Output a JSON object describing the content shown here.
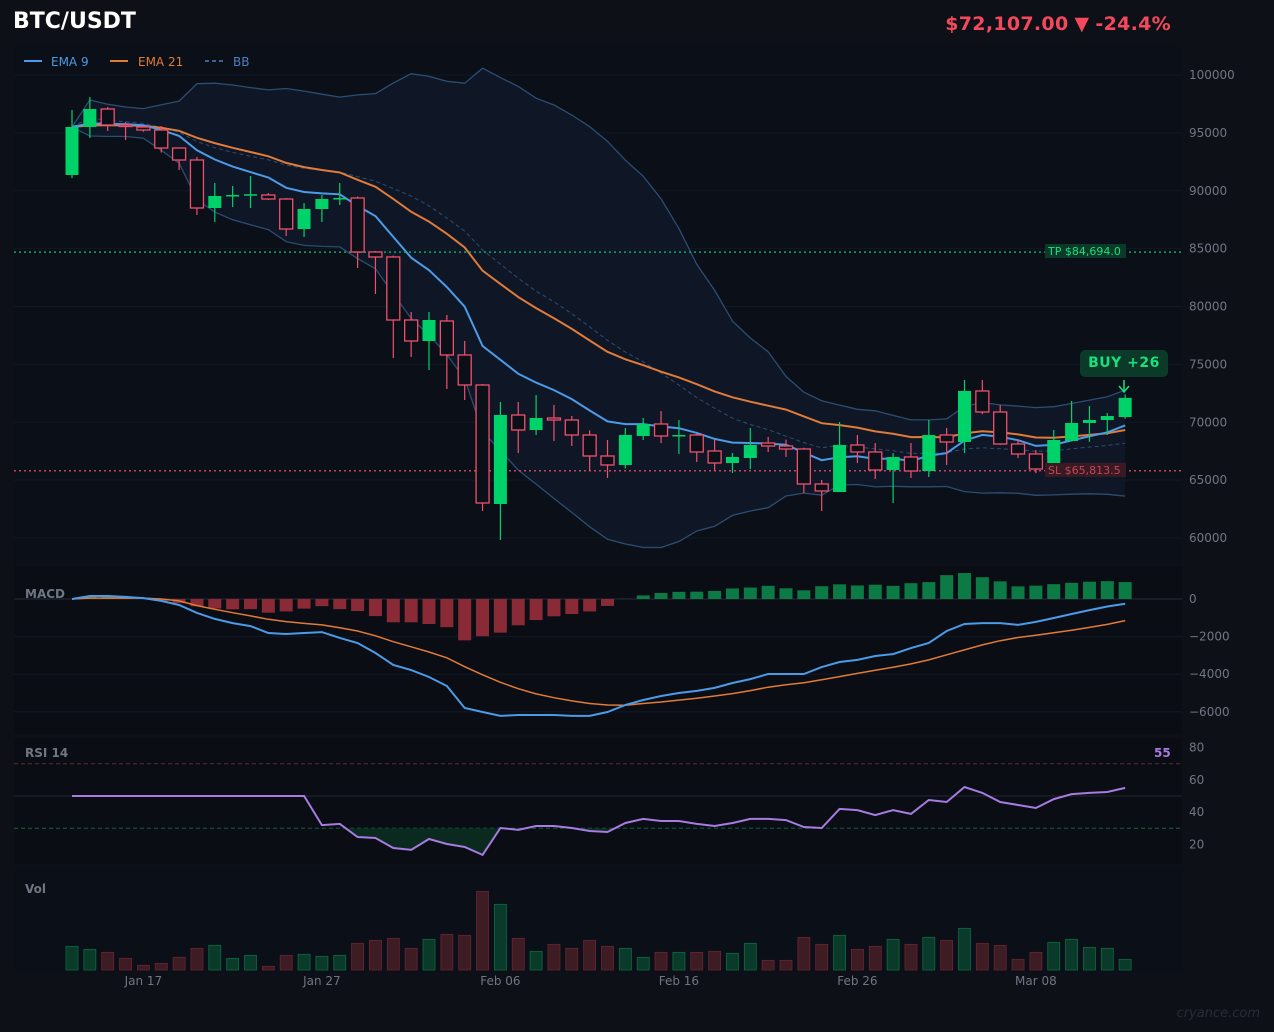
{
  "header": {
    "symbol": "BTC/USDT",
    "price": "$72,107.00",
    "change_arrow": "▼",
    "change": "-24.4%"
  },
  "legend": [
    {
      "label": "EMA 9",
      "color": "#4b9be8",
      "style": "solid"
    },
    {
      "label": "EMA 21",
      "color": "#e07b39",
      "style": "solid"
    },
    {
      "label": "BB",
      "color": "#4b7fbf",
      "style": "dashed"
    }
  ],
  "markers": {
    "tp_label": "TP $84,694.0",
    "tp_value": 84694.0,
    "sl_label": "SL $65,813.5",
    "sl_value": 65813.5,
    "signal_label": "BUY  +26"
  },
  "panels": {
    "macd_title": "MACD",
    "rsi_title": "RSI 14",
    "rsi_value": "55",
    "vol_title": "Vol"
  },
  "watermark": "cryance.com",
  "colors": {
    "up": "#00d26a",
    "down": "#f0506e",
    "ema9": "#4b9be8",
    "ema21": "#e07b39",
    "bb": "#2c4d72",
    "rsi": "#a77be0",
    "tp": "#0fa968",
    "sl": "#c0465a"
  },
  "chart_data": [
    {
      "type": "candlestick",
      "title": "BTC/USDT",
      "ylim": [
        57500,
        102000
      ],
      "yticks": [
        "100000",
        "95000",
        "90000",
        "85000",
        "80000",
        "75000",
        "70000",
        "65000",
        "60000"
      ],
      "xticks": [
        "Jan 17",
        "Jan 27",
        "Feb 06",
        "Feb 16",
        "Feb 26",
        "Mar 08"
      ],
      "grid": true,
      "legend": "top-left",
      "x": [
        "Jan 13",
        "Jan 14",
        "Jan 15",
        "Jan 16",
        "Jan 17",
        "Jan 18",
        "Jan 19",
        "Jan 20",
        "Jan 21",
        "Jan 22",
        "Jan 23",
        "Jan 24",
        "Jan 25",
        "Jan 26",
        "Jan 27",
        "Jan 28",
        "Jan 29",
        "Jan 30",
        "Jan 31",
        "Feb 01",
        "Feb 02",
        "Feb 03",
        "Feb 04",
        "Feb 05",
        "Feb 06",
        "Feb 07",
        "Feb 08",
        "Feb 09",
        "Feb 10",
        "Feb 11",
        "Feb 12",
        "Feb 13",
        "Feb 14",
        "Feb 15",
        "Feb 16",
        "Feb 17",
        "Feb 18",
        "Feb 19",
        "Feb 20",
        "Feb 21",
        "Feb 22",
        "Feb 23",
        "Feb 24",
        "Feb 25",
        "Feb 26",
        "Feb 27",
        "Feb 28",
        "Mar 01",
        "Mar 02",
        "Mar 03",
        "Mar 04",
        "Mar 05",
        "Mar 06",
        "Mar 07",
        "Mar 08",
        "Mar 09",
        "Mar 10",
        "Mar 11",
        "Mar 12",
        "Mar 13"
      ],
      "ohlc": [
        [
          91361,
          96976,
          91102,
          95507
        ],
        [
          95507,
          98099,
          94557,
          97062
        ],
        [
          97062,
          97235,
          95162,
          95680
        ],
        [
          95680,
          95939,
          94384,
          95594
        ],
        [
          95507,
          95594,
          95100,
          95248
        ],
        [
          95248,
          95594,
          93300,
          93693
        ],
        [
          93693,
          93693,
          91793,
          92657
        ],
        [
          92657,
          92916,
          87905,
          88510
        ],
        [
          88510,
          90670,
          87300,
          89547
        ],
        [
          89547,
          90410,
          88596,
          89633
        ],
        [
          89633,
          91274,
          88510,
          89700
        ],
        [
          89633,
          89800,
          89200,
          89287
        ],
        [
          89287,
          89374,
          86091,
          86696
        ],
        [
          86696,
          88942,
          86005,
          88423
        ],
        [
          88423,
          89633,
          87300,
          89287
        ],
        [
          89287,
          90670,
          88769,
          89374
        ],
        [
          89374,
          89500,
          83326,
          84709
        ],
        [
          84709,
          84800,
          81080,
          84277
        ],
        [
          84277,
          84400,
          75551,
          78834
        ],
        [
          78834,
          79525,
          75638,
          77020
        ],
        [
          77020,
          79525,
          74515,
          78834
        ],
        [
          78748,
          79266,
          72873,
          75811
        ],
        [
          75811,
          77020,
          71923,
          73219
        ],
        [
          73219,
          73300,
          62334,
          63025
        ],
        [
          62938,
          71750,
          59828,
          70627
        ],
        [
          70627,
          71750,
          67344,
          69331
        ],
        [
          69331,
          72355,
          68900,
          70368
        ],
        [
          70368,
          71491,
          68381,
          70195
        ],
        [
          70195,
          70541,
          67950,
          68899
        ],
        [
          68899,
          69300,
          65789,
          67085
        ],
        [
          67085,
          68467,
          65185,
          66308
        ],
        [
          66308,
          69504,
          66000,
          68899
        ],
        [
          68813,
          70368,
          68467,
          69850
        ],
        [
          69850,
          70973,
          68208,
          68813
        ],
        [
          68813,
          70195,
          67258,
          68899
        ],
        [
          68899,
          69000,
          66567,
          67431
        ],
        [
          67517,
          68467,
          65789,
          66480
        ],
        [
          66480,
          67344,
          65617,
          66999
        ],
        [
          66912,
          69500,
          65962,
          68035
        ],
        [
          68208,
          68727,
          67431,
          67949
        ],
        [
          67949,
          68500,
          67000,
          67690
        ],
        [
          67690,
          67800,
          63889,
          64666
        ],
        [
          64666,
          65012,
          62334,
          64062
        ],
        [
          63975,
          70022,
          63975,
          68035
        ],
        [
          68035,
          68900,
          66480,
          67431
        ],
        [
          67431,
          68208,
          65098,
          65876
        ],
        [
          65876,
          67344,
          63025,
          66999
        ],
        [
          66999,
          68208,
          65185,
          65789
        ],
        [
          65789,
          70195,
          65271,
          68899
        ],
        [
          68899,
          69504,
          66308,
          68295
        ],
        [
          68295,
          73651,
          67344,
          72701
        ],
        [
          72701,
          73651,
          70700,
          70886
        ],
        [
          70886,
          71491,
          68035,
          68122
        ],
        [
          68122,
          68500,
          66900,
          67258
        ],
        [
          67258,
          67600,
          65600,
          65962
        ],
        [
          65962,
          69331,
          65962,
          68467
        ],
        [
          68381,
          71837,
          68381,
          69936
        ],
        [
          69936,
          71400,
          68300,
          70195
        ],
        [
          70195,
          70800,
          68900,
          70541
        ],
        [
          70454,
          72400,
          70300,
          72107
        ]
      ],
      "overlays": {
        "ema_fast": 9,
        "ema_slow": 21,
        "bollinger": {
          "period": 20,
          "stddev": 2
        }
      }
    },
    {
      "type": "line",
      "title": "MACD",
      "yticks": [
        "0",
        "−2000",
        "−4000",
        "−6000"
      ],
      "ylim": [
        -7000,
        2000
      ],
      "series": [
        {
          "values": [
            0,
            160,
            160,
            110,
            50,
            -100,
            -320,
            -740,
            -1060,
            -1280,
            -1440,
            -1810,
            -1860,
            -1810,
            -1760,
            -2070,
            -2340,
            -2870,
            -3510,
            -3780,
            -4150,
            -4630,
            -5800,
            -6010,
            -6220,
            -6170,
            -6170,
            -6170,
            -6220,
            -6220,
            -6010,
            -5640,
            -5370,
            -5160,
            -5000,
            -4890,
            -4730,
            -4470,
            -4260,
            -3990,
            -3990,
            -3990,
            -3620,
            -3350,
            -3240,
            -3030,
            -2930,
            -2610,
            -2340,
            -1700,
            -1330,
            -1280,
            -1280,
            -1380,
            -1220,
            -1010,
            -800,
            -590,
            -400,
            -250
          ]
        },
        {
          "values": [
            0,
            50,
            50,
            50,
            50,
            0,
            -100,
            -350,
            -550,
            -730,
            -900,
            -1080,
            -1200,
            -1300,
            -1380,
            -1530,
            -1700,
            -1960,
            -2270,
            -2540,
            -2820,
            -3130,
            -3600,
            -4030,
            -4430,
            -4770,
            -5050,
            -5250,
            -5420,
            -5560,
            -5640,
            -5650,
            -5560,
            -5480,
            -5380,
            -5280,
            -5160,
            -5030,
            -4870,
            -4690,
            -4560,
            -4450,
            -4300,
            -4130,
            -3960,
            -3790,
            -3630,
            -3450,
            -3240,
            -2970,
            -2710,
            -2440,
            -2220,
            -2050,
            -1930,
            -1800,
            -1660,
            -1510,
            -1350,
            -1150
          ]
        }
      ]
    },
    {
      "type": "line",
      "title": "RSI 14",
      "yticks": [
        "80",
        "60",
        "40",
        "20"
      ],
      "ylim": [
        10,
        90
      ],
      "levels": [
        70,
        50,
        30
      ],
      "values": [
        50,
        50,
        50,
        50,
        50,
        50,
        50,
        50,
        50,
        50,
        50,
        50,
        50,
        50,
        32,
        32.7,
        24.6,
        24,
        17.8,
        16.6,
        23.4,
        20.3,
        18.4,
        13.5,
        30.2,
        29,
        31.4,
        31.4,
        30.2,
        28.3,
        27.7,
        33.3,
        35.8,
        34.5,
        34.5,
        32.7,
        31.4,
        33.3,
        35.8,
        35.8,
        35.1,
        30.8,
        30.2,
        42,
        41.3,
        38.2,
        41.3,
        38.9,
        47.5,
        46.3,
        55.6,
        51.9,
        46.3,
        44.4,
        42.6,
        48.1,
        51.2,
        51.9,
        52.5,
        55
      ]
    },
    {
      "type": "bar",
      "title": "Vol",
      "values": [
        71,
        62,
        53,
        35,
        14,
        20,
        38,
        65,
        74,
        35,
        44,
        11,
        44,
        47,
        41,
        44,
        80,
        89,
        95,
        65,
        92,
        107,
        104,
        236,
        197,
        95,
        56,
        77,
        65,
        89,
        71,
        65,
        38,
        53,
        53,
        53,
        56,
        50,
        80,
        29,
        29,
        98,
        77,
        104,
        62,
        71,
        92,
        77,
        98,
        89,
        125,
        80,
        74,
        32,
        53,
        83,
        92,
        68,
        65,
        32
      ]
    }
  ]
}
